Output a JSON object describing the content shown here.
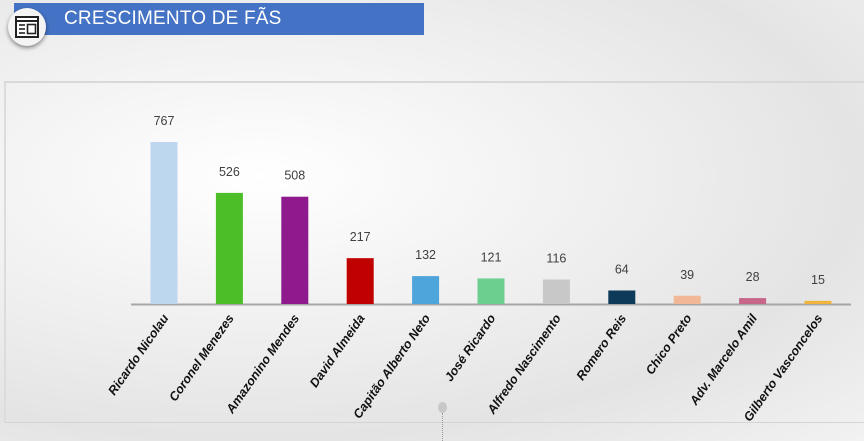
{
  "header": {
    "title": "CRESCIMENTO DE FÃS",
    "icon": "newspaper-layout-icon",
    "color": "#4472c4"
  },
  "chart_data": {
    "type": "bar",
    "title": "",
    "xlabel": "",
    "ylabel": "",
    "ylim": [
      0,
      767
    ],
    "grid": false,
    "legend": "none",
    "categories": [
      "Ricardo Nicolau",
      "Coronel Menezes",
      "Amazonino Mendes",
      "David Almeida",
      "Capitão Alberto Neto",
      "José Ricardo",
      "Alfredo Nascimento",
      "Romero Reis",
      "Chico Preto",
      "Adv. Marcelo Amil",
      "Gilberto Vasconcelos"
    ],
    "values": [
      767,
      526,
      508,
      217,
      132,
      121,
      116,
      64,
      39,
      28,
      15
    ],
    "colors": [
      "#bdd7ee",
      "#4cbf28",
      "#8e1a8e",
      "#c00000",
      "#4ea5dc",
      "#6ccf8f",
      "#c8c8c8",
      "#0d3a58",
      "#f0b896",
      "#c8668a",
      "#f0b43c"
    ]
  }
}
